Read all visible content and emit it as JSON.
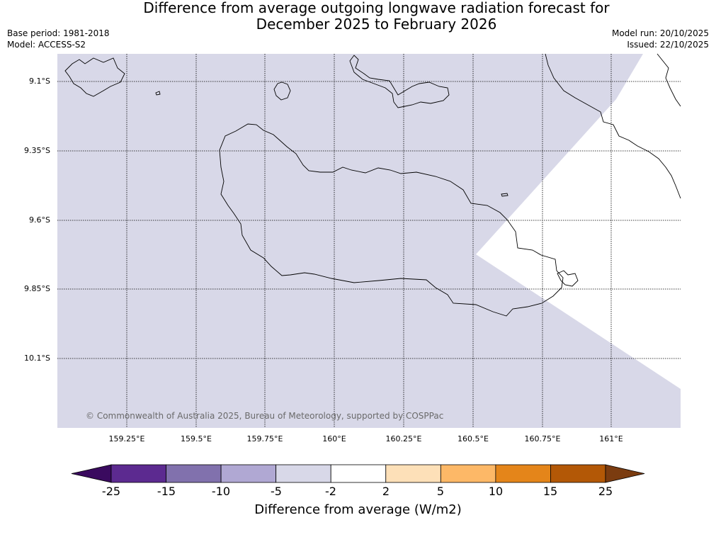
{
  "title_line1": "Difference from average outgoing longwave radiation forecast for",
  "title_line2": "December 2025 to February 2026",
  "base_period": "Base period: 1981-2018",
  "model": "Model: ACCESS-S2",
  "model_run": "Model run: 20/10/2025",
  "issued": "Issued: 22/10/2025",
  "copyright": "© Commonwealth of Australia 2025, Bureau of Meteorology, supported by COSPPac",
  "lat_labels": [
    "9.1°S",
    "9.35°S",
    "9.6°S",
    "9.85°S",
    "10.1°S"
  ],
  "lon_labels": [
    "159.25°E",
    "159.5°E",
    "159.75°E",
    "160°E",
    "160.25°E",
    "160.5°E",
    "160.75°E",
    "161°E"
  ],
  "colorbar": {
    "title": "Difference from average (W/m2)",
    "ticks": [
      "-25",
      "-15",
      "-10",
      "-5",
      "-2",
      "2",
      "5",
      "10",
      "15",
      "25"
    ],
    "colors": [
      "#3a0a5f",
      "#5c2a90",
      "#8171ad",
      "#b0a8d3",
      "#d8d8e8",
      "#ffffff",
      "#fde0b8",
      "#fdb867",
      "#e4851a",
      "#b35806",
      "#7b3c10"
    ]
  },
  "field_colors": {
    "minus5_to_minus2": "#d8d8e8",
    "minus2_to_2": "#ffffff"
  }
}
